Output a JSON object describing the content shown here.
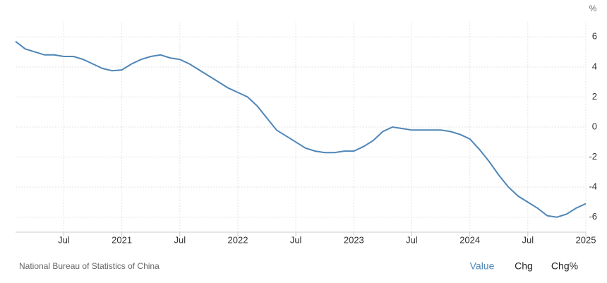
{
  "chart_data": {
    "type": "line",
    "unit": "%",
    "x": [
      "2020-02",
      "2020-03",
      "2020-04",
      "2020-05",
      "2020-06",
      "2020-07",
      "2020-08",
      "2020-09",
      "2020-10",
      "2020-11",
      "2020-12",
      "2021-01",
      "2021-02",
      "2021-03",
      "2021-04",
      "2021-05",
      "2021-06",
      "2021-07",
      "2021-08",
      "2021-09",
      "2021-10",
      "2021-11",
      "2021-12",
      "2022-01",
      "2022-02",
      "2022-03",
      "2022-04",
      "2022-05",
      "2022-06",
      "2022-07",
      "2022-08",
      "2022-09",
      "2022-10",
      "2022-11",
      "2022-12",
      "2023-01",
      "2023-02",
      "2023-03",
      "2023-04",
      "2023-05",
      "2023-06",
      "2023-07",
      "2023-08",
      "2023-09",
      "2023-10",
      "2023-11",
      "2023-12",
      "2024-01",
      "2024-02",
      "2024-03",
      "2024-04",
      "2024-05",
      "2024-06",
      "2024-07",
      "2024-08",
      "2024-09",
      "2024-10",
      "2024-11",
      "2024-12",
      "2025-01"
    ],
    "series": [
      {
        "name": "Value",
        "color": "#4f86b8",
        "values": [
          5.7,
          5.2,
          5.0,
          4.8,
          4.8,
          4.7,
          4.7,
          4.5,
          4.2,
          3.9,
          3.75,
          3.8,
          4.2,
          4.5,
          4.7,
          4.8,
          4.6,
          4.5,
          4.2,
          3.8,
          3.4,
          3.0,
          2.6,
          2.3,
          2.0,
          1.4,
          0.6,
          -0.2,
          -0.6,
          -1.0,
          -1.4,
          -1.6,
          -1.7,
          -1.7,
          -1.6,
          -1.6,
          -1.3,
          -0.9,
          -0.3,
          0.0,
          -0.1,
          -0.2,
          -0.2,
          -0.2,
          -0.2,
          -0.3,
          -0.5,
          -0.8,
          -1.5,
          -2.3,
          -3.2,
          -4.0,
          -4.6,
          -5.0,
          -5.4,
          -5.9,
          -6.0,
          -5.8,
          -5.4,
          -5.1
        ]
      }
    ],
    "xlim": [
      "2020-02",
      "2025-01"
    ],
    "xticks": [
      {
        "value": "2020-07",
        "label": "Jul"
      },
      {
        "value": "2021-01",
        "label": "2021"
      },
      {
        "value": "2021-07",
        "label": "Jul"
      },
      {
        "value": "2022-01",
        "label": "2022"
      },
      {
        "value": "2022-07",
        "label": "Jul"
      },
      {
        "value": "2023-01",
        "label": "2023"
      },
      {
        "value": "2023-07",
        "label": "Jul"
      },
      {
        "value": "2024-01",
        "label": "2024"
      },
      {
        "value": "2024-07",
        "label": "Jul"
      },
      {
        "value": "2025-01",
        "label": "2025"
      }
    ],
    "ylim": [
      -7,
      7
    ],
    "yticks": [
      -6,
      -4,
      -2,
      0,
      2,
      4,
      6
    ],
    "grid": true,
    "source": "National Bureau of Statistics of China",
    "tabs": [
      "Value",
      "Chg",
      "Chg%"
    ],
    "active_tab": 0
  }
}
